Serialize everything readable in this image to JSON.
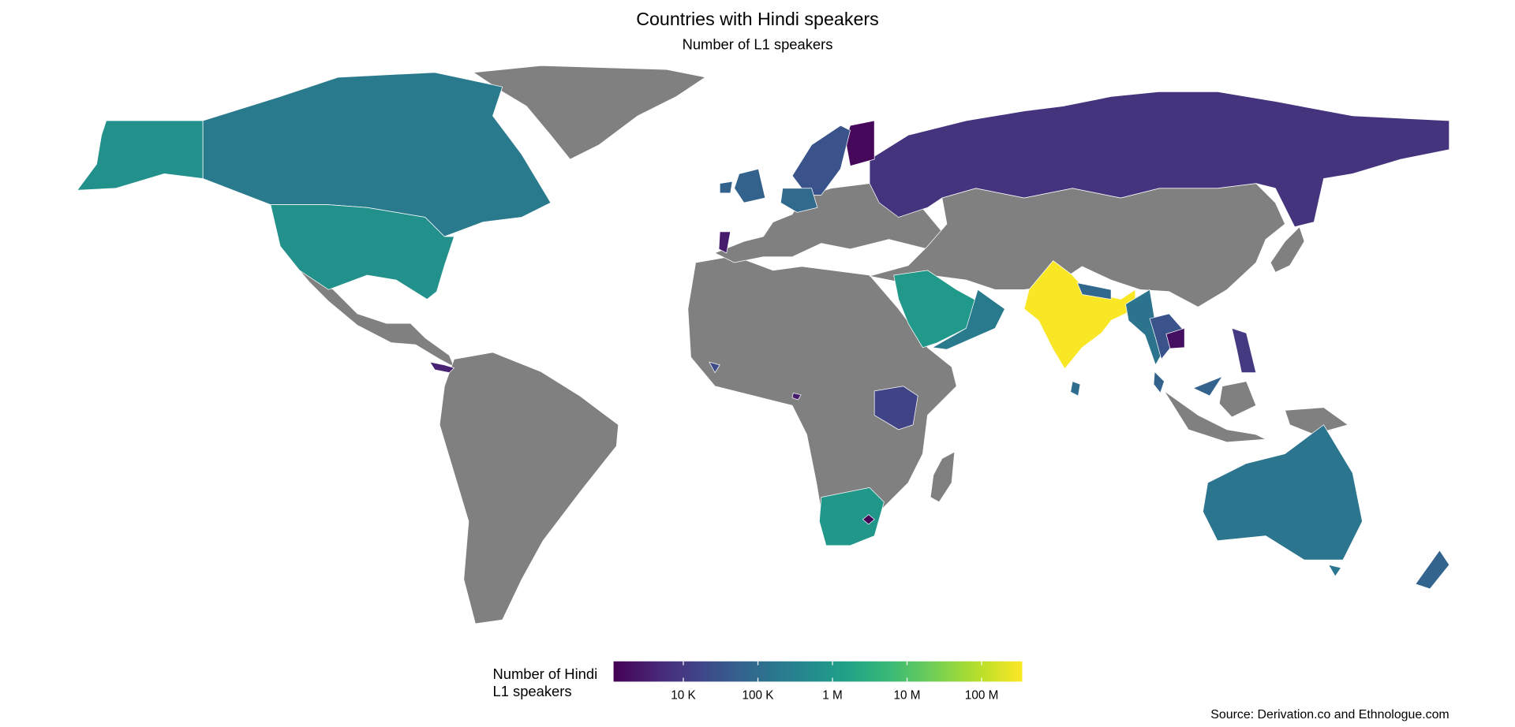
{
  "chart_data": {
    "type": "choropleth",
    "title": "Countries with Hindi speakers",
    "subtitle": "Number of L1 speakers",
    "legend_title": [
      "Number of Hindi",
      "L1 speakers"
    ],
    "values": [
      8000,
      1500,
      30000,
      60000,
      90000,
      3000,
      650000,
      200000,
      650000,
      1000000,
      200000,
      322000000,
      80000,
      150000,
      30000,
      2000,
      100000,
      60000,
      10000,
      15000,
      890000,
      1200,
      160000,
      66000,
      4000,
      20000,
      3000
    ],
    "clim": [
      1160,
      350000000
    ],
    "log_scale": true,
    "colormap": "viridis",
    "missing_color": "#808080",
    "ticks": [
      {
        "value": 10000,
        "label": "10 K"
      },
      {
        "value": 100000,
        "label": "100 K"
      },
      {
        "value": 1000000,
        "label": "1 M"
      },
      {
        "value": 10000000,
        "label": "10 M"
      },
      {
        "value": 100000000,
        "label": "100 M"
      }
    ],
    "source": "Source: Derivation.co and Ethnologue.com"
  }
}
